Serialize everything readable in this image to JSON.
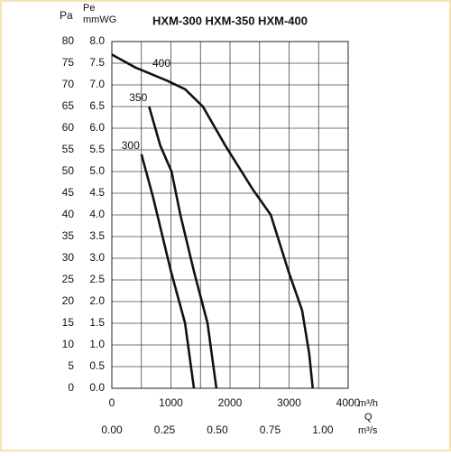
{
  "chart_data": {
    "type": "line",
    "title": "HXM-300   HXM-350   HXM-400",
    "y_label": "Pa",
    "y2_label_top": "Pe",
    "y2_label": "mmWG",
    "x_label": "m³/h",
    "x2_label_top": "Q",
    "x2_label": "m³/s",
    "xlim": [
      0,
      4000
    ],
    "xticks": [
      0,
      1000,
      2000,
      3000,
      4000
    ],
    "xminor": [
      500,
      1500,
      2500,
      3500
    ],
    "x2lim": [
      0,
      1.12
    ],
    "x2ticks": [
      {
        "value": 0,
        "label": "0.00"
      },
      {
        "value": 0.25,
        "label": "0.25"
      },
      {
        "value": 0.5,
        "label": "0.50"
      },
      {
        "value": 0.75,
        "label": "0.75"
      },
      {
        "value": 1,
        "label": "1.00"
      }
    ],
    "ylim": [
      0,
      80
    ],
    "yticks": [
      0,
      5,
      10,
      15,
      20,
      25,
      30,
      35,
      40,
      45,
      50,
      55,
      60,
      65,
      70,
      75,
      80
    ],
    "y2lim": [
      0,
      8
    ],
    "y2ticks": [
      {
        "value": 0,
        "label": "0.0"
      },
      {
        "value": 0.5,
        "label": "0.5"
      },
      {
        "value": 1,
        "label": "1.0"
      },
      {
        "value": 1.5,
        "label": "1.5"
      },
      {
        "value": 2,
        "label": "2.0"
      },
      {
        "value": 2.5,
        "label": "2.5"
      },
      {
        "value": 3,
        "label": "3.0"
      },
      {
        "value": 3.5,
        "label": "3.5"
      },
      {
        "value": 4,
        "label": "4.0"
      },
      {
        "value": 4.5,
        "label": "4.5"
      },
      {
        "value": 5,
        "label": "5.0"
      },
      {
        "value": 5.5,
        "label": "5.5"
      },
      {
        "value": 6,
        "label": "6.0"
      },
      {
        "value": 6.5,
        "label": "6.5"
      },
      {
        "value": 7,
        "label": "7.0"
      },
      {
        "value": 7.5,
        "label": "7.5"
      },
      {
        "value": 8,
        "label": "8.0"
      }
    ],
    "grid": true,
    "series": [
      {
        "name": "300",
        "color": "#111111",
        "x": [
          500,
          700,
          1000,
          1240,
          1390
        ],
        "values": [
          54,
          44,
          27,
          15,
          0
        ]
      },
      {
        "name": "350",
        "color": "#111111",
        "x": [
          630,
          820,
          1010,
          1160,
          1390,
          1620,
          1770
        ],
        "values": [
          65,
          56,
          50,
          40,
          27,
          15,
          0
        ]
      },
      {
        "name": "400",
        "color": "#111111",
        "x": [
          0,
          400,
          930,
          1240,
          1540,
          1920,
          2380,
          2690,
          2990,
          3220,
          3340,
          3400
        ],
        "values": [
          77,
          74,
          71,
          69,
          65,
          56,
          46,
          40,
          27,
          18,
          8,
          0
        ]
      }
    ]
  }
}
